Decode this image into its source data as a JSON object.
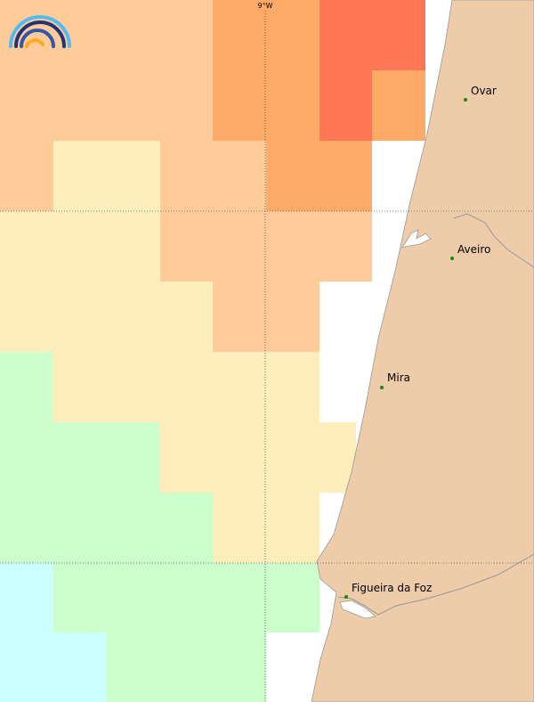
{
  "map": {
    "meridian_label": "9°W",
    "places": [
      "Ovar",
      "Aveiro",
      "Mira",
      "Figueira da Foz"
    ]
  }
}
